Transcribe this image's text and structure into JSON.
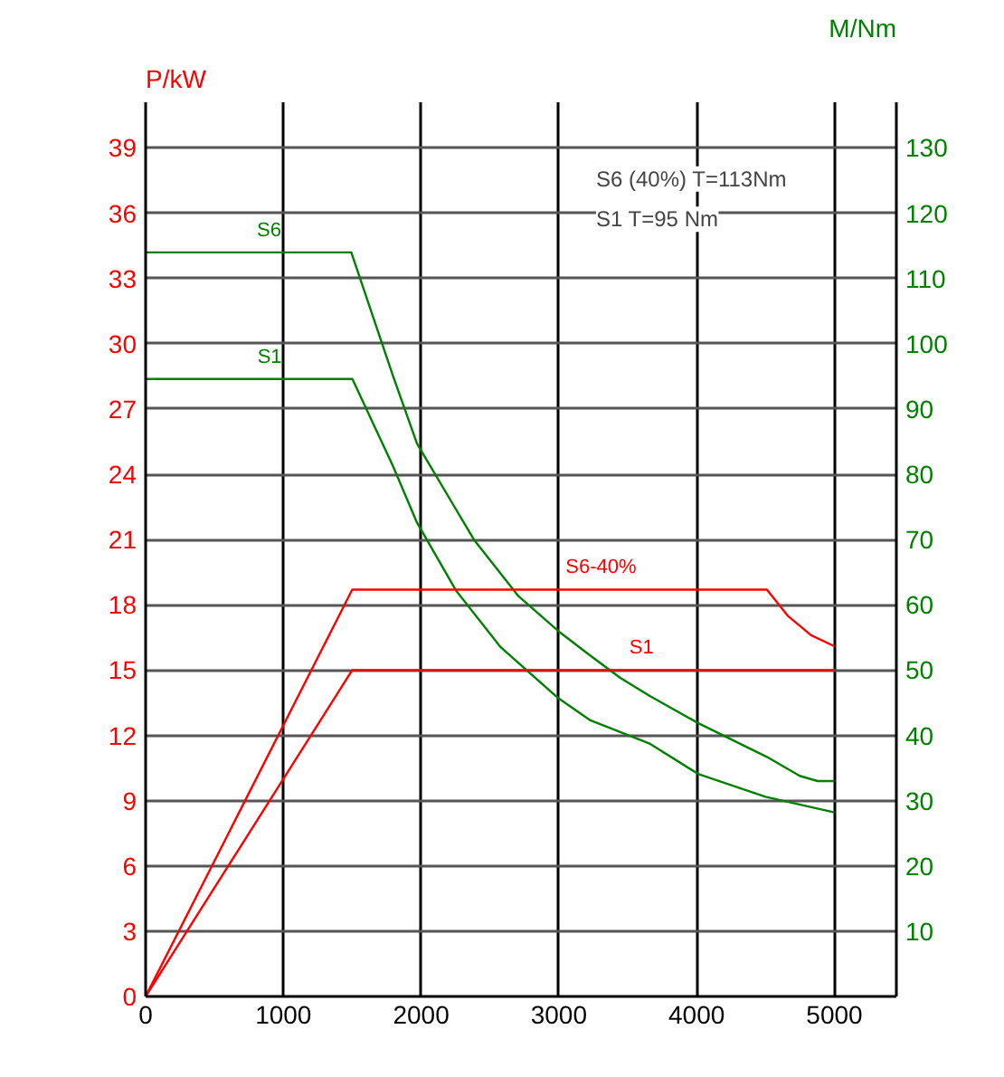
{
  "chart_data": {
    "type": "line",
    "ylabel": "P/kW",
    "y2label": "M/Nm",
    "series": [
      {
        "name": "S6",
        "color": "#008000",
        "axis": "y2",
        "x": [
          0,
          1493,
          1797,
          1970,
          2383,
          2708,
          3012,
          3229,
          3446,
          3663,
          4010,
          4510,
          4748,
          4878,
          5000
        ],
        "values": [
          114,
          114,
          95,
          84.7,
          70,
          61.3,
          55.7,
          52.2,
          48.8,
          46,
          41.9,
          36.7,
          33.8,
          33,
          33
        ]
      },
      {
        "name": "S1",
        "color": "#008000",
        "axis": "y2",
        "x": [
          0,
          1501,
          1797,
          1970,
          2253,
          2578,
          2990,
          3229,
          3663,
          4010,
          4500,
          5000
        ],
        "values": [
          94.6,
          94.6,
          81.2,
          72.6,
          62.2,
          53.5,
          45.8,
          42.3,
          38.7,
          34.1,
          30.6,
          28.2
        ]
      },
      {
        "name": "S6-40%",
        "color": "#ff0000",
        "x": [
          0,
          1500,
          4510,
          4661,
          4831,
          5000
        ],
        "values": [
          0,
          18.7,
          18.7,
          17.5,
          16.6,
          16.1
        ]
      },
      {
        "name": "S1",
        "color": "#ff0000",
        "x": [
          0,
          1500,
          5000
        ],
        "values": [
          0,
          15,
          15
        ]
      }
    ],
    "xlim": [
      0,
      5450
    ],
    "xticks": [
      0,
      1000,
      2000,
      3000,
      4000,
      5000
    ],
    "ylim": [
      0,
      41.1
    ],
    "yticks": [
      0,
      3,
      6,
      9,
      12,
      15,
      18,
      21,
      24,
      27,
      30,
      33,
      36,
      39
    ],
    "y2lim": [
      0,
      137
    ],
    "y2ticks": [
      10,
      20,
      30,
      40,
      50,
      60,
      70,
      80,
      90,
      100,
      110,
      120,
      130
    ],
    "grid": true,
    "annotations": [
      "S6 (40%) T=113Nm",
      "S1 T=95 Nm"
    ]
  }
}
